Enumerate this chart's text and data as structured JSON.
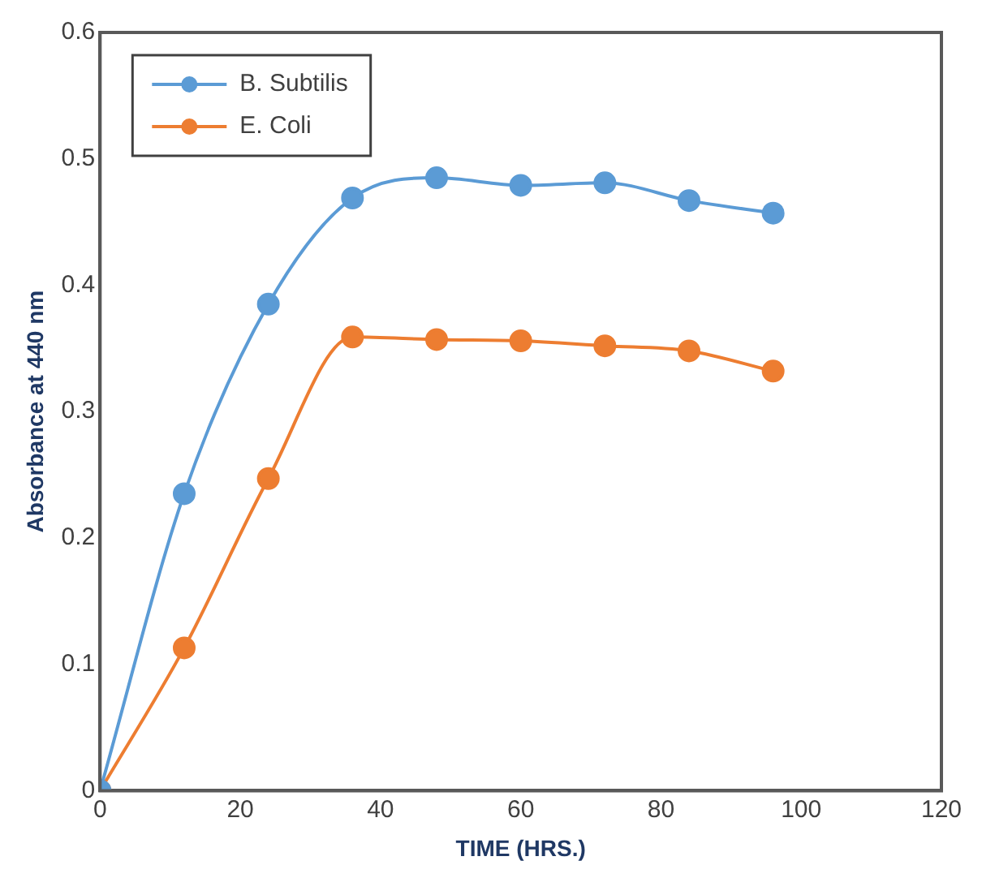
{
  "chart_data": {
    "type": "line",
    "xlabel": "TIME (HRS.)",
    "ylabel": "Absorbance at 440 nm",
    "x": [
      0,
      12,
      24,
      36,
      48,
      60,
      72,
      84,
      96
    ],
    "series": [
      {
        "name": "B. Subtilis",
        "color": "#5b9bd5",
        "values": [
          0,
          0.235,
          0.385,
          0.469,
          0.485,
          0.479,
          0.481,
          0.467,
          0.457
        ]
      },
      {
        "name": "E. Coli",
        "color": "#ed7d31",
        "values": [
          0,
          0.113,
          0.247,
          0.359,
          0.357,
          0.356,
          0.352,
          0.348,
          0.332
        ]
      }
    ],
    "xlim": [
      0,
      120
    ],
    "xticks": [
      0,
      20,
      40,
      60,
      80,
      100,
      120
    ],
    "ylim": [
      0,
      0.6
    ],
    "yticks": [
      0,
      0.1,
      0.2,
      0.3,
      0.4,
      0.5,
      0.6
    ],
    "grid": false,
    "legend": "top left",
    "marker": "circle",
    "line_style": "solid"
  }
}
